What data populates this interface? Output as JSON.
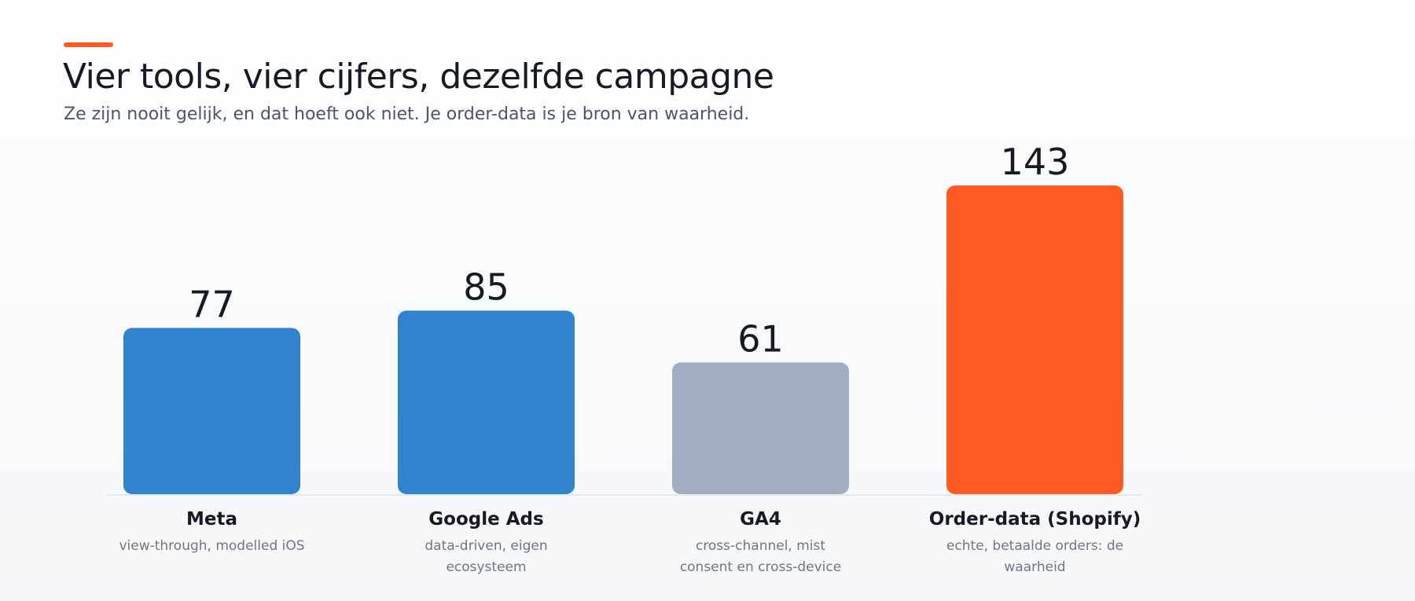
{
  "header": {
    "accent_color": "#FF5A24",
    "title": "Vier tools, vier cijfers, dezelfde campagne",
    "subtitle": "Ze zijn nooit gelijk, en dat hoeft ook niet. Je order-data is je bron van waarheid."
  },
  "chart_data": {
    "type": "bar",
    "title": "Vier tools, vier cijfers, dezelfde campagne",
    "subtitle": "Ze zijn nooit gelijk, en dat hoeft ook niet. Je order-data is je bron van waarheid.",
    "categories": [
      "Meta",
      "Google Ads",
      "GA4",
      "Order-data (Shopify)"
    ],
    "descriptions": [
      [
        "view-through, modelled iOS"
      ],
      [
        "data-driven, eigen",
        "ecosysteem"
      ],
      [
        "cross-channel, mist",
        "consent en cross-device"
      ],
      [
        "echte, betaalde orders: de",
        "waarheid"
      ]
    ],
    "values": [
      77,
      85,
      61,
      143
    ],
    "colors": [
      "#3183CE",
      "#3183CE",
      "#A0AEC0",
      "#FF5A24"
    ],
    "xlabel": "",
    "ylabel": "",
    "ylim": [
      0,
      143
    ],
    "grid": false,
    "legend": "none"
  }
}
